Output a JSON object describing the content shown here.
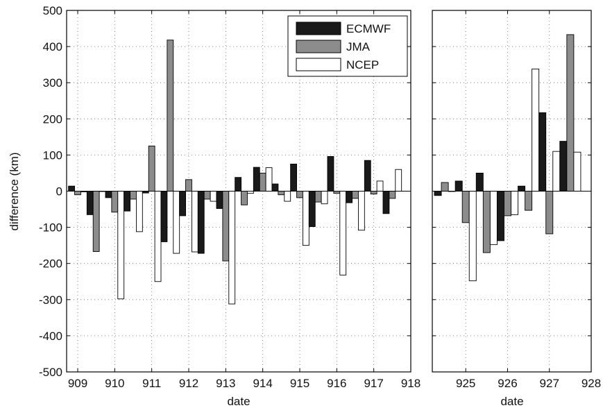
{
  "chart_data": {
    "type": "bar",
    "ylabel": "difference (km)",
    "xlabel": "date",
    "ylim": [
      -500,
      500
    ],
    "yticks": [
      -500,
      -400,
      -300,
      -200,
      -100,
      0,
      100,
      200,
      300,
      400,
      500
    ],
    "grid": true,
    "legend_position": "top-right",
    "series_styles": [
      {
        "name": "ECMWF",
        "color": "#1a1a1a"
      },
      {
        "name": "JMA",
        "color": "#8c8c8c"
      },
      {
        "name": "NCEP",
        "color": "#ffffff"
      }
    ],
    "panels": [
      {
        "xlim": [
          908.7,
          918
        ],
        "xticks": [
          909,
          910,
          911,
          912,
          913,
          914,
          915,
          916,
          917,
          918
        ],
        "x": [
          909,
          909.5,
          910,
          910.5,
          911,
          911.5,
          912,
          912.5,
          913,
          913.5,
          914,
          914.5,
          915,
          915.5,
          916,
          916.5,
          917,
          917.5
        ],
        "series": [
          {
            "name": "ECMWF",
            "values": [
              14,
              -65,
              -18,
              -55,
              -5,
              -140,
              -68,
              -172,
              -48,
              38,
              66,
              20,
              75,
              -98,
              96,
              -32,
              85,
              -62
            ]
          },
          {
            "name": "JMA",
            "values": [
              -10,
              -167,
              -58,
              -22,
              125,
              418,
              32,
              -22,
              -193,
              -38,
              50,
              -10,
              -18,
              -30,
              -6,
              -20,
              -8,
              -20
            ]
          },
          {
            "name": "NCEP",
            "values": [
              -2,
              0,
              -298,
              -112,
              -250,
              -172,
              -168,
              -28,
              -312,
              -6,
              65,
              -28,
              -150,
              -35,
              -232,
              -108,
              28,
              60
            ]
          }
        ]
      },
      {
        "xlim": [
          924.2,
          928
        ],
        "xticks": [
          925,
          926,
          927,
          928
        ],
        "x": [
          924.5,
          925,
          925.5,
          926,
          926.5,
          927,
          927.5
        ],
        "series": [
          {
            "name": "ECMWF",
            "values": [
              -12,
              28,
              50,
              -137,
              14,
              217,
              138
            ]
          },
          {
            "name": "JMA",
            "values": [
              24,
              -87,
              -170,
              -68,
              -53,
              -118,
              433
            ]
          },
          {
            "name": "NCEP",
            "values": [
              0,
              -248,
              -148,
              -65,
              338,
              110,
              108
            ]
          }
        ]
      }
    ]
  }
}
